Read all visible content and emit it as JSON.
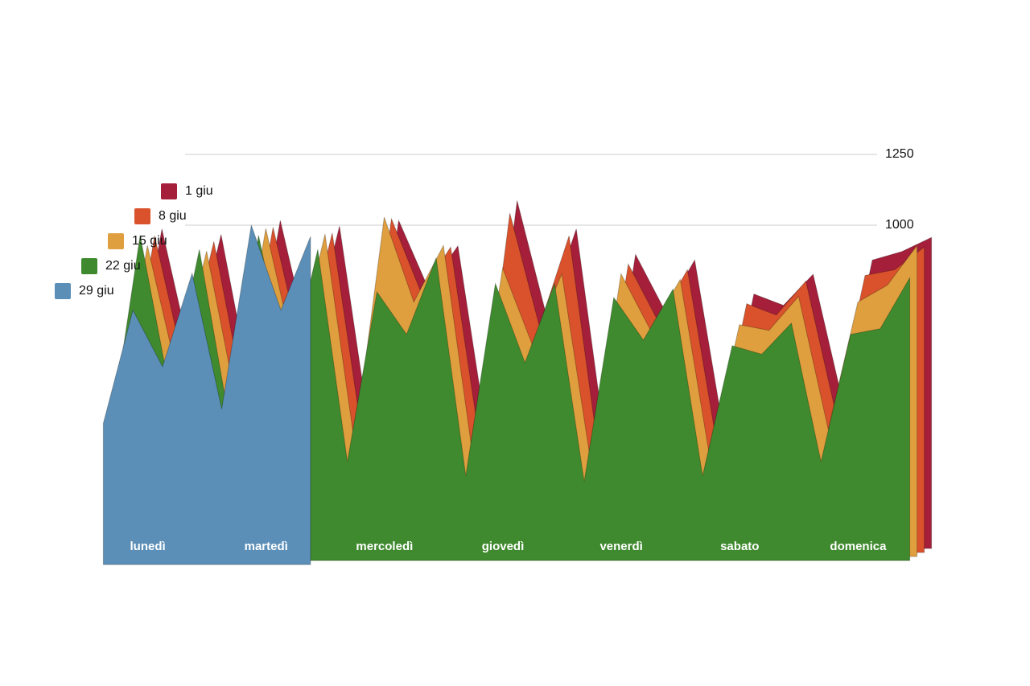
{
  "chart_data": {
    "type": "area",
    "categories": [
      null,
      "lunedì",
      null,
      null,
      null,
      "martedì",
      null,
      null,
      null,
      "mercoledì",
      null,
      null,
      null,
      "giovedì",
      null,
      null,
      null,
      "venerdì",
      null,
      null,
      null,
      "sabato",
      null,
      null,
      null,
      "domenica",
      null,
      null
    ],
    "series": [
      {
        "name": "1 giu",
        "color": "#a51f3a",
        "values": [
          330,
          930,
          470,
          910,
          370,
          960,
          510,
          940,
          230,
          960,
          720,
          870,
          190,
          1030,
          620,
          930,
          160,
          840,
          640,
          820,
          200,
          700,
          660,
          770,
          320,
          820,
          850,
          900
        ]
      },
      {
        "name": "8 giu",
        "color": "#d9522c",
        "values": [
          320,
          920,
          460,
          900,
          360,
          950,
          500,
          930,
          220,
          980,
          720,
          880,
          180,
          1000,
          600,
          920,
          150,
          820,
          620,
          800,
          180,
          680,
          640,
          760,
          300,
          780,
          800,
          880
        ]
      },
      {
        "name": "15 giu",
        "color": "#e09f3e",
        "values": [
          300,
          900,
          450,
          880,
          350,
          960,
          500,
          940,
          200,
          1000,
          700,
          900,
          150,
          820,
          550,
          800,
          120,
          800,
          600,
          780,
          150,
          620,
          600,
          720,
          250,
          700,
          760,
          900
        ]
      },
      {
        "name": "22 giu",
        "color": "#3f8a2e",
        "values": [
          250,
          950,
          400,
          900,
          300,
          950,
          450,
          900,
          150,
          750,
          600,
          870,
          100,
          780,
          500,
          780,
          80,
          730,
          580,
          760,
          100,
          560,
          530,
          640,
          150,
          600,
          620,
          800
        ]
      },
      {
        "name": "29 giu",
        "color": "#5b8fb8",
        "values": [
          300,
          700,
          500,
          830,
          350,
          1000,
          700,
          960,
          null,
          null,
          null,
          null,
          null,
          null,
          null,
          null,
          null,
          null,
          null,
          null,
          null,
          null,
          null,
          null,
          null,
          null,
          null,
          null
        ]
      }
    ],
    "ylim": [
      0,
      1250
    ],
    "yticks": [
      1000,
      1250
    ],
    "grid": true
  }
}
